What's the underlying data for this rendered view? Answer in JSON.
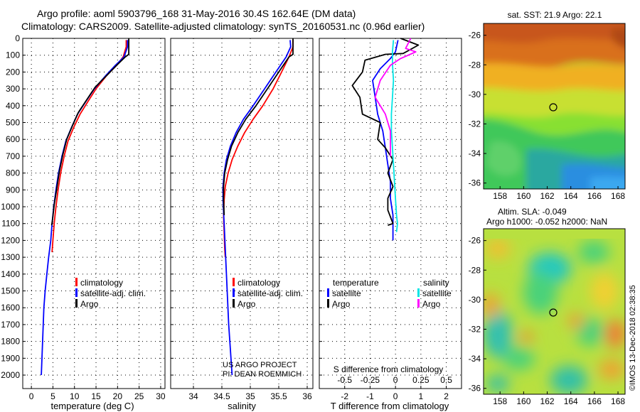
{
  "header": {
    "title_line1": "Argo profile: aoml 5903796_168 31-May-2016 30.4S 162.64E (DM data)",
    "title_line2": "Climatology: CARS2009. Satellite-adjusted climatology: synTS_20160531.nc (0.96d earlier)"
  },
  "colors": {
    "climatology": "#ff0000",
    "satellite": "#0000ff",
    "argo": "#000000",
    "sat_salinity": "#00e5e5",
    "argo_salinity": "#ff00ff"
  },
  "chart_data": [
    {
      "type": "line",
      "xlabel": "temperature (deg C)",
      "ylabel": "",
      "xlim": [
        -2,
        31
      ],
      "ylim": [
        2080,
        0
      ],
      "y_inverted": true,
      "x_ticks": [
        0,
        5,
        10,
        15,
        20,
        25,
        30
      ],
      "y_ticks": [
        0,
        100,
        200,
        300,
        400,
        500,
        600,
        700,
        800,
        900,
        1000,
        1100,
        1200,
        1300,
        1400,
        1500,
        1600,
        1700,
        1800,
        1900,
        2000
      ],
      "grid": true,
      "legend": {
        "position": "bottom-center",
        "entries": [
          "climatology",
          "satellite-adj. clim.",
          "Argo"
        ]
      },
      "series": [
        {
          "name": "climatology",
          "color": "#ff0000",
          "x": [
            22.0,
            22.0,
            21.3,
            19.8,
            17.5,
            15.0,
            13.0,
            11.3,
            9.8,
            8.5,
            7.6,
            6.8,
            6.2,
            5.7,
            5.3,
            5.0,
            4.8
          ],
          "y": [
            10,
            50,
            110,
            160,
            220,
            300,
            380,
            450,
            530,
            610,
            700,
            800,
            900,
            1000,
            1100,
            1200,
            1270
          ]
        },
        {
          "name": "satellite-adj. clim.",
          "color": "#0000ff",
          "x": [
            22.3,
            22.3,
            21.5,
            19.5,
            17.3,
            14.6,
            12.5,
            10.7,
            9.3,
            8.0,
            7.1,
            6.3,
            5.7,
            5.2,
            4.8,
            4.5,
            4.0,
            3.6,
            3.2,
            2.9,
            2.6,
            2.3
          ],
          "y": [
            10,
            50,
            110,
            160,
            220,
            300,
            380,
            450,
            530,
            610,
            700,
            800,
            900,
            1000,
            1100,
            1200,
            1300,
            1400,
            1500,
            1600,
            1800,
            2000
          ]
        },
        {
          "name": "Argo",
          "color": "#000000",
          "x": [
            22.6,
            22.6,
            21.8,
            19.8,
            17.5,
            14.8,
            12.7,
            10.9,
            9.5,
            8.2,
            7.3,
            6.5,
            5.9,
            5.3,
            4.9,
            4.7
          ],
          "y": [
            0,
            95,
            110,
            160,
            220,
            290,
            370,
            440,
            520,
            600,
            690,
            790,
            890,
            990,
            1080,
            1110
          ]
        }
      ]
    },
    {
      "type": "line",
      "xlabel": "salinity",
      "xlim": [
        33.6,
        36.1
      ],
      "ylim": [
        2080,
        0
      ],
      "y_inverted": true,
      "x_ticks": [
        34,
        34.5,
        35,
        35.5,
        36
      ],
      "grid": true,
      "legend": {
        "position": "bottom-center",
        "entries": [
          "climatology",
          "satellite-adj. clim.",
          "Argo"
        ]
      },
      "annotation_lines": [
        "US ARGO PROJECT",
        "PI: DEAN ROEMMICH"
      ],
      "series": [
        {
          "name": "climatology",
          "color": "#ff0000",
          "x": [
            35.75,
            35.75,
            35.68,
            35.55,
            35.4,
            35.22,
            35.05,
            34.9,
            34.78,
            34.68,
            34.61,
            34.56,
            34.54,
            34.53,
            34.54,
            34.55,
            34.56
          ],
          "y": [
            10,
            50,
            110,
            200,
            300,
            400,
            480,
            560,
            640,
            720,
            800,
            880,
            960,
            1050,
            1150,
            1250,
            1300
          ]
        },
        {
          "name": "satellite-adj. clim.",
          "color": "#0000ff",
          "x": [
            35.7,
            35.71,
            35.63,
            35.45,
            35.25,
            35.05,
            34.88,
            34.75,
            34.65,
            34.58,
            34.54,
            34.52,
            34.52,
            34.54,
            34.56,
            34.58,
            34.6,
            34.62,
            34.64,
            34.66,
            34.68
          ],
          "y": [
            10,
            50,
            110,
            200,
            300,
            400,
            480,
            560,
            640,
            720,
            800,
            880,
            960,
            1100,
            1250,
            1400,
            1550,
            1700,
            1800,
            1900,
            2000
          ]
        },
        {
          "name": "Argo",
          "color": "#000000",
          "x": [
            35.75,
            35.75,
            35.68,
            35.5,
            35.3,
            35.1,
            34.92,
            34.78,
            34.67,
            34.6,
            34.55,
            34.53,
            34.53,
            34.54
          ],
          "y": [
            0,
            95,
            110,
            200,
            300,
            400,
            480,
            560,
            640,
            720,
            800,
            880,
            960,
            1050
          ]
        }
      ]
    },
    {
      "type": "line",
      "xlabel": "T difference from climatology",
      "xlabel_top": "S difference from climatology",
      "xlim": [
        -3.0,
        2.6
      ],
      "ylim": [
        2080,
        0
      ],
      "y_inverted": true,
      "x_ticks": [
        -2,
        -1,
        0,
        1,
        2
      ],
      "x_ticks_salinity": [
        "-0.5",
        "-0.25",
        "0",
        "0.25",
        "0.5"
      ],
      "x_ticks_salinity_values": [
        -0.5,
        -0.25,
        0,
        0.25,
        0.5
      ],
      "grid": true,
      "legend": {
        "position": "bottom",
        "temperature_title": "temperature",
        "salinity_title": "salinity",
        "entries": [
          "satellite",
          "Argo",
          "satellite",
          "Argo"
        ]
      },
      "series": [
        {
          "name": "temperature satellite",
          "color": "#0000ff",
          "x": [
            0.1,
            0.0,
            -0.2,
            -0.6,
            -0.9,
            -0.8,
            -0.7,
            -0.5,
            -0.4,
            -0.3,
            -0.2,
            -0.2,
            -0.1,
            -0.1,
            -0.1
          ],
          "y": [
            10,
            80,
            120,
            180,
            250,
            350,
            450,
            550,
            650,
            750,
            850,
            950,
            1050,
            1150,
            1200
          ]
        },
        {
          "name": "temperature Argo",
          "color": "#000000",
          "x": [
            0.2,
            0.9,
            0.3,
            -0.4,
            -1.2,
            -1.3,
            -1.7,
            -1.4,
            -1.3,
            -0.6,
            -0.7,
            -0.4,
            -0.1,
            -0.3,
            -0.1,
            -0.3,
            -0.3,
            -0.2,
            -0.1,
            -0.3
          ],
          "y": [
            0,
            40,
            90,
            95,
            130,
            200,
            280,
            350,
            450,
            500,
            600,
            650,
            720,
            800,
            880,
            950,
            1020,
            1060,
            1100,
            1110
          ]
        },
        {
          "name": "salinity satellite",
          "color": "#00e5e5",
          "x": [
            -0.02,
            -0.03,
            -0.03,
            -0.02,
            -0.03,
            -0.04,
            -0.04,
            -0.03,
            -0.02,
            -0.01,
            0.0,
            0.01,
            0.02,
            0.01
          ],
          "y": [
            10,
            80,
            150,
            250,
            350,
            450,
            550,
            650,
            750,
            850,
            950,
            1050,
            1100,
            1150
          ]
        },
        {
          "name": "salinity Argo",
          "color": "#ff00ff",
          "x": [
            0.15,
            0.1,
            0.2,
            0.05,
            -0.05,
            -0.15,
            -0.2,
            -0.1,
            -0.05,
            -0.05,
            -0.05
          ],
          "y": [
            0,
            60,
            80,
            120,
            160,
            250,
            350,
            450,
            550,
            650,
            700
          ]
        }
      ]
    },
    {
      "type": "heatmap",
      "title": "sat. SST: 21.9 Argo: 22.1",
      "x_ticks": [
        158,
        160,
        162,
        164,
        166,
        168
      ],
      "y_ticks": [
        -26,
        -28,
        -30,
        -32,
        -34,
        -36
      ],
      "xlim": [
        156.6,
        168.6
      ],
      "ylim": [
        -36.4,
        -25.2
      ],
      "marker": {
        "lon": 162.64,
        "lat": -30.4
      }
    },
    {
      "type": "heatmap",
      "title": "Altim. SLA: -0.049",
      "subtitle": "Argo h1000: -0.052 h2000: NaN",
      "x_ticks": [
        158,
        160,
        162,
        164,
        166,
        168
      ],
      "y_ticks": [
        -26,
        -28,
        -30,
        -32,
        -34,
        -36
      ],
      "xlim": [
        156.6,
        168.6
      ],
      "ylim": [
        -36.4,
        -25.2
      ],
      "marker": {
        "lon": 162.64,
        "lat": -30.4
      }
    }
  ],
  "credit": "©IMOS 13-Dec-2018 02:38:35"
}
